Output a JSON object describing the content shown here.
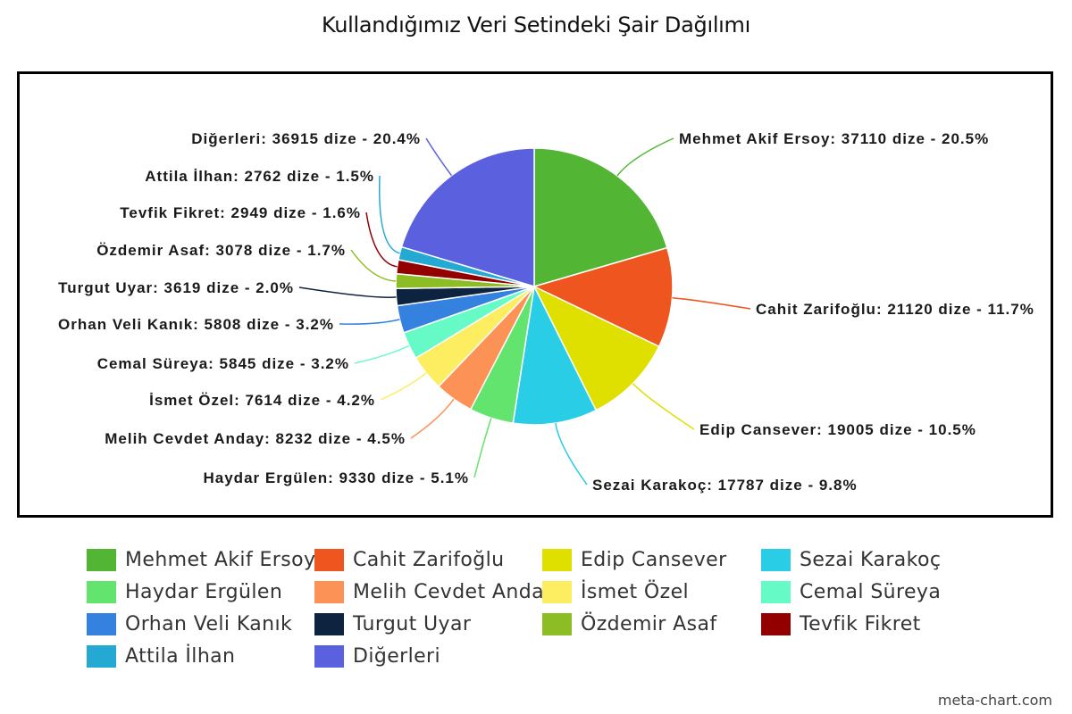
{
  "chart_data": {
    "type": "pie",
    "title": "Kullandığımız Veri Setindeki Şair Dağılımı",
    "unit": "dize",
    "legend_position": "bottom",
    "slices": [
      {
        "name": "Mehmet Akif Ersoy",
        "value": 37110,
        "percent": "20.5%",
        "color": "#52b533"
      },
      {
        "name": "Cahit Zarifoğlu",
        "value": 21120,
        "percent": "11.7%",
        "color": "#ef561f"
      },
      {
        "name": "Edip Cansever",
        "value": 19005,
        "percent": "10.5%",
        "color": "#dfe000"
      },
      {
        "name": "Sezai Karakoç",
        "value": 17787,
        "percent": "9.8%",
        "color": "#29cde6"
      },
      {
        "name": "Haydar Ergülen",
        "value": 9330,
        "percent": "5.1%",
        "color": "#62e46e"
      },
      {
        "name": "Melih Cevdet Anday",
        "value": 8232,
        "percent": "4.5%",
        "color": "#fd9256"
      },
      {
        "name": "İsmet Özel",
        "value": 7614,
        "percent": "4.2%",
        "color": "#fdee61"
      },
      {
        "name": "Cemal Süreya",
        "value": 5845,
        "percent": "3.2%",
        "color": "#66fbc6"
      },
      {
        "name": "Orhan Veli Kanık",
        "value": 5808,
        "percent": "3.2%",
        "color": "#3581df"
      },
      {
        "name": "Turgut Uyar",
        "value": 3619,
        "percent": "2.0%",
        "color": "#0d2340"
      },
      {
        "name": "Özdemir Asaf",
        "value": 3078,
        "percent": "1.7%",
        "color": "#8dbd25"
      },
      {
        "name": "Tevfik Fikret",
        "value": 2949,
        "percent": "1.6%",
        "color": "#920000"
      },
      {
        "name": "Attila İlhan",
        "value": 2762,
        "percent": "1.5%",
        "color": "#23a9d2"
      },
      {
        "name": "Diğerleri",
        "value": 36915,
        "percent": "20.4%",
        "color": "#5b60df"
      }
    ]
  },
  "footer": {
    "watermark": "meta-chart.com"
  }
}
